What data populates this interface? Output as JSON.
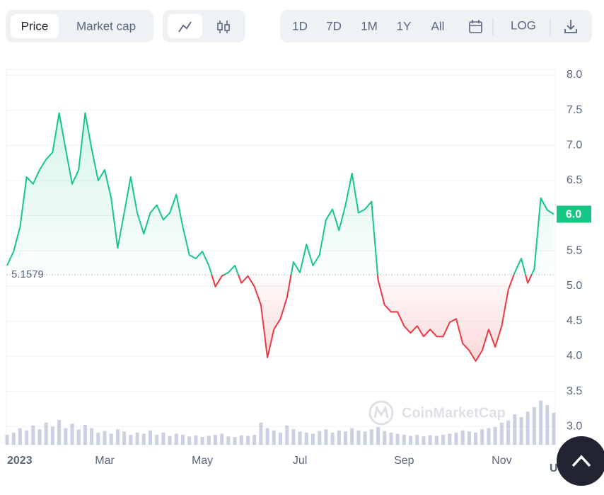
{
  "toolbar": {
    "tabs": [
      "Price",
      "Market cap"
    ],
    "ranges": [
      "1D",
      "7D",
      "1M",
      "1Y",
      "All"
    ],
    "log": "LOG"
  },
  "chart_data": {
    "type": "line",
    "categories": [
      "2023",
      null,
      null,
      null,
      null,
      null,
      null,
      null,
      null,
      null,
      null,
      null,
      null,
      null,
      null,
      "Mar",
      null,
      null,
      null,
      null,
      null,
      null,
      null,
      null,
      null,
      null,
      null,
      null,
      null,
      null,
      "May",
      null,
      null,
      null,
      null,
      null,
      null,
      null,
      null,
      null,
      null,
      null,
      null,
      null,
      null,
      "Jul",
      null,
      null,
      null,
      null,
      null,
      null,
      null,
      null,
      null,
      null,
      null,
      null,
      null,
      null,
      null,
      "Sep",
      null,
      null,
      null,
      null,
      null,
      null,
      null,
      null,
      null,
      null,
      null,
      null,
      null,
      null,
      "Nov",
      null,
      null,
      null,
      null,
      null,
      null,
      null,
      null
    ],
    "series": [
      {
        "name": "Price",
        "up_color": "#16c784",
        "down_color": "#ea3943",
        "values": [
          5.29,
          5.49,
          5.84,
          6.55,
          6.45,
          6.65,
          6.8,
          6.9,
          7.46,
          6.95,
          6.45,
          6.65,
          7.46,
          6.95,
          6.5,
          6.65,
          6.25,
          5.54,
          6.04,
          6.55,
          6.04,
          5.74,
          6.04,
          6.15,
          5.94,
          6.04,
          6.3,
          5.84,
          5.44,
          5.39,
          5.49,
          5.29,
          4.99,
          5.14,
          5.19,
          5.29,
          5.04,
          5.14,
          4.99,
          4.73,
          3.98,
          4.38,
          4.53,
          4.83,
          5.34,
          5.19,
          5.59,
          5.29,
          5.44,
          5.94,
          6.09,
          5.79,
          6.15,
          6.6,
          6.04,
          6.09,
          6.2,
          5.09,
          4.73,
          4.63,
          4.63,
          4.43,
          4.33,
          4.43,
          4.28,
          4.38,
          4.28,
          4.28,
          4.48,
          4.53,
          4.18,
          4.08,
          3.93,
          4.08,
          4.38,
          4.13,
          4.43,
          4.94,
          5.19,
          5.39,
          5.04,
          5.24,
          6.25,
          6.08,
          6.02
        ]
      }
    ],
    "volume": {
      "color": "#b4bdd6",
      "values": [
        18,
        22,
        30,
        26,
        35,
        28,
        40,
        33,
        45,
        30,
        38,
        28,
        36,
        30,
        22,
        25,
        20,
        28,
        24,
        18,
        22,
        20,
        26,
        18,
        22,
        16,
        20,
        18,
        15,
        17,
        14,
        16,
        18,
        20,
        15,
        14,
        17,
        16,
        18,
        40,
        30,
        26,
        22,
        35,
        28,
        24,
        22,
        20,
        25,
        28,
        22,
        26,
        24,
        30,
        26,
        24,
        28,
        32,
        25,
        22,
        20,
        18,
        16,
        18,
        15,
        17,
        16,
        18,
        20,
        22,
        26,
        24,
        22,
        28,
        30,
        32,
        40,
        44,
        55,
        50,
        60,
        68,
        80,
        72,
        58
      ]
    },
    "ylim": [
      2.74,
      8.08
    ],
    "yticks": [
      {
        "value": 3,
        "label": "3.0"
      },
      3.5,
      {
        "value": 4,
        "label": "4.0"
      },
      4.5,
      {
        "value": 5,
        "label": "5.0"
      },
      5.5,
      {
        "value": 6,
        "label": "6.0"
      },
      6.5,
      {
        "value": 7,
        "label": "7.0"
      },
      7.5,
      {
        "value": 8,
        "label": "8.0"
      }
    ],
    "grid": true,
    "baseline": 5.1579,
    "current_price": {
      "value": 6.02,
      "label": "6.0"
    },
    "watermark": "CoinMarketCap",
    "currency": "USD"
  }
}
